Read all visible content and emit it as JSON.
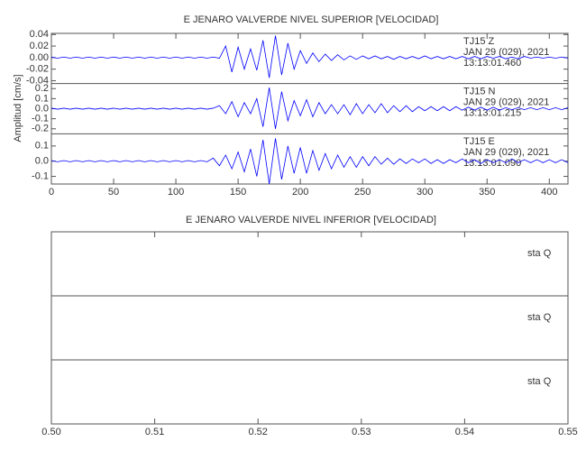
{
  "chart_data": [
    {
      "type": "line",
      "title": "E JENARO VALVERDE NIVEL SUPERIOR [VELOCIDAD]",
      "y_label": "Amplitud [cm/s]",
      "xlim": [
        0,
        415
      ],
      "xticks": [
        0,
        50,
        100,
        150,
        200,
        250,
        300,
        350,
        400
      ],
      "x": [
        0,
        5,
        10,
        15,
        20,
        25,
        30,
        35,
        40,
        45,
        50,
        55,
        60,
        65,
        70,
        75,
        80,
        85,
        90,
        95,
        100,
        105,
        110,
        115,
        120,
        125,
        130,
        135,
        140,
        145,
        150,
        155,
        160,
        165,
        170,
        175,
        180,
        185,
        190,
        195,
        200,
        205,
        210,
        215,
        220,
        225,
        230,
        235,
        240,
        245,
        250,
        255,
        260,
        265,
        270,
        275,
        280,
        285,
        290,
        295,
        300,
        305,
        310,
        315,
        320,
        325,
        330,
        335,
        340,
        345,
        350,
        355,
        360,
        365,
        370,
        375,
        380,
        385,
        390,
        395,
        400,
        405,
        410,
        415
      ],
      "series": [
        {
          "name": "TJ15   Z",
          "color": "#0000ff",
          "annotations": [
            "JAN 29 (029), 2021",
            "13:13:01.460"
          ],
          "ylim": [
            -0.045,
            0.042
          ],
          "yticks": [
            0.04,
            0.02,
            {
              "value": 0,
              "label": "0.00"
            },
            -0.02,
            -0.04
          ],
          "values": [
            0.001,
            -0.001,
            0.001,
            -0.001,
            0.001,
            -0.001,
            0.001,
            -0.001,
            0.001,
            -0.001,
            0.001,
            -0.001,
            0.001,
            -0.001,
            0.001,
            -0.001,
            0.001,
            -0.001,
            0.001,
            -0.001,
            0.001,
            -0.001,
            0.001,
            -0.001,
            0.001,
            -0.001,
            0.001,
            -0.001,
            0.02,
            -0.025,
            0.018,
            -0.02,
            0.015,
            -0.022,
            0.03,
            -0.035,
            0.038,
            -0.03,
            0.025,
            -0.02,
            0.012,
            -0.01,
            0.008,
            -0.007,
            0.006,
            -0.005,
            0.005,
            -0.004,
            0.003,
            -0.003,
            0.003,
            -0.002,
            0.003,
            -0.002,
            0.002,
            -0.003,
            0.002,
            -0.002,
            0.002,
            -0.002,
            0.003,
            -0.002,
            0.002,
            -0.002,
            0.002,
            -0.002,
            0.002,
            -0.002,
            0.002,
            -0.002,
            0.002,
            -0.001,
            0.002,
            -0.002,
            0.001,
            -0.002,
            0.002,
            -0.001,
            0.001,
            -0.001,
            0.001,
            -0.001,
            0.001,
            -0.001
          ]
        },
        {
          "name": "TJ15   N",
          "color": "#0000ff",
          "annotations": [
            "JAN 29 (029), 2021",
            "13:13:01.215"
          ],
          "ylim": [
            -0.25,
            0.25
          ],
          "yticks": [
            0.2,
            0.1,
            {
              "value": 0,
              "label": "0.0"
            },
            -0.1,
            -0.2
          ],
          "values": [
            0.005,
            -0.005,
            0.005,
            -0.005,
            0.005,
            -0.005,
            0.005,
            -0.005,
            0.005,
            -0.005,
            0.005,
            -0.005,
            0.005,
            -0.005,
            0.005,
            -0.005,
            0.005,
            -0.005,
            0.005,
            -0.005,
            0.005,
            -0.005,
            0.005,
            -0.005,
            0.005,
            -0.005,
            0.005,
            0.03,
            -0.05,
            0.07,
            -0.08,
            0.06,
            -0.05,
            0.1,
            -0.18,
            0.21,
            -0.2,
            0.17,
            -0.12,
            0.08,
            -0.07,
            0.09,
            -0.08,
            0.06,
            -0.05,
            0.04,
            -0.05,
            0.04,
            -0.06,
            0.05,
            -0.05,
            0.04,
            -0.04,
            0.05,
            -0.04,
            0.03,
            -0.03,
            0.03,
            -0.03,
            0.02,
            -0.02,
            0.02,
            -0.02,
            0.02,
            -0.02,
            0.02,
            -0.015,
            0.015,
            -0.015,
            0.015,
            -0.015,
            0.015,
            -0.015,
            0.01,
            -0.01,
            0.01,
            -0.01,
            0.01,
            -0.01,
            0.01,
            -0.01,
            0.01,
            -0.01,
            0.01
          ]
        },
        {
          "name": "TJ15   E",
          "color": "#0000ff",
          "annotations": [
            "JAN 29 (029), 2021",
            "13:13:01.090"
          ],
          "ylim": [
            -0.15,
            0.18
          ],
          "yticks": [
            0.1,
            {
              "value": 0,
              "label": "0.0"
            },
            -0.1
          ],
          "values": [
            0.004,
            -0.004,
            0.004,
            -0.004,
            0.004,
            -0.004,
            0.004,
            -0.004,
            0.004,
            -0.004,
            0.004,
            -0.004,
            0.004,
            -0.004,
            0.004,
            -0.004,
            0.004,
            -0.004,
            0.004,
            -0.004,
            0.004,
            -0.004,
            0.004,
            -0.004,
            0.004,
            -0.004,
            0.02,
            -0.03,
            0.04,
            -0.05,
            0.06,
            -0.07,
            0.08,
            -0.1,
            0.14,
            -0.15,
            0.15,
            -0.12,
            0.1,
            -0.08,
            0.09,
            -0.08,
            0.07,
            -0.06,
            0.05,
            -0.05,
            0.04,
            -0.04,
            0.03,
            -0.04,
            0.03,
            -0.03,
            0.03,
            -0.02,
            0.02,
            -0.02,
            0.015,
            -0.015,
            0.015,
            -0.01,
            0.015,
            -0.015,
            0.01,
            -0.015,
            0.01,
            -0.01,
            0.015,
            -0.01,
            0.01,
            -0.015,
            0.01,
            -0.01,
            0.01,
            -0.01,
            0.015,
            -0.01,
            0.01,
            -0.01,
            0.01,
            -0.01,
            0.01,
            -0.01,
            0.01,
            -0.01
          ]
        }
      ]
    },
    {
      "type": "line",
      "title": "E JENARO VALVERDE NIVEL INFERIOR [VELOCIDAD]",
      "xlim": [
        0.5,
        0.55
      ],
      "xticks": [
        {
          "value": 0.5,
          "label": "0.50"
        },
        0.51,
        0.52,
        0.53,
        0.54,
        {
          "value": 0.55,
          "label": "0.55"
        }
      ],
      "series": [
        {
          "name": "sta   Q"
        },
        {
          "name": "sta   Q"
        },
        {
          "name": "sta   Q"
        }
      ]
    }
  ]
}
